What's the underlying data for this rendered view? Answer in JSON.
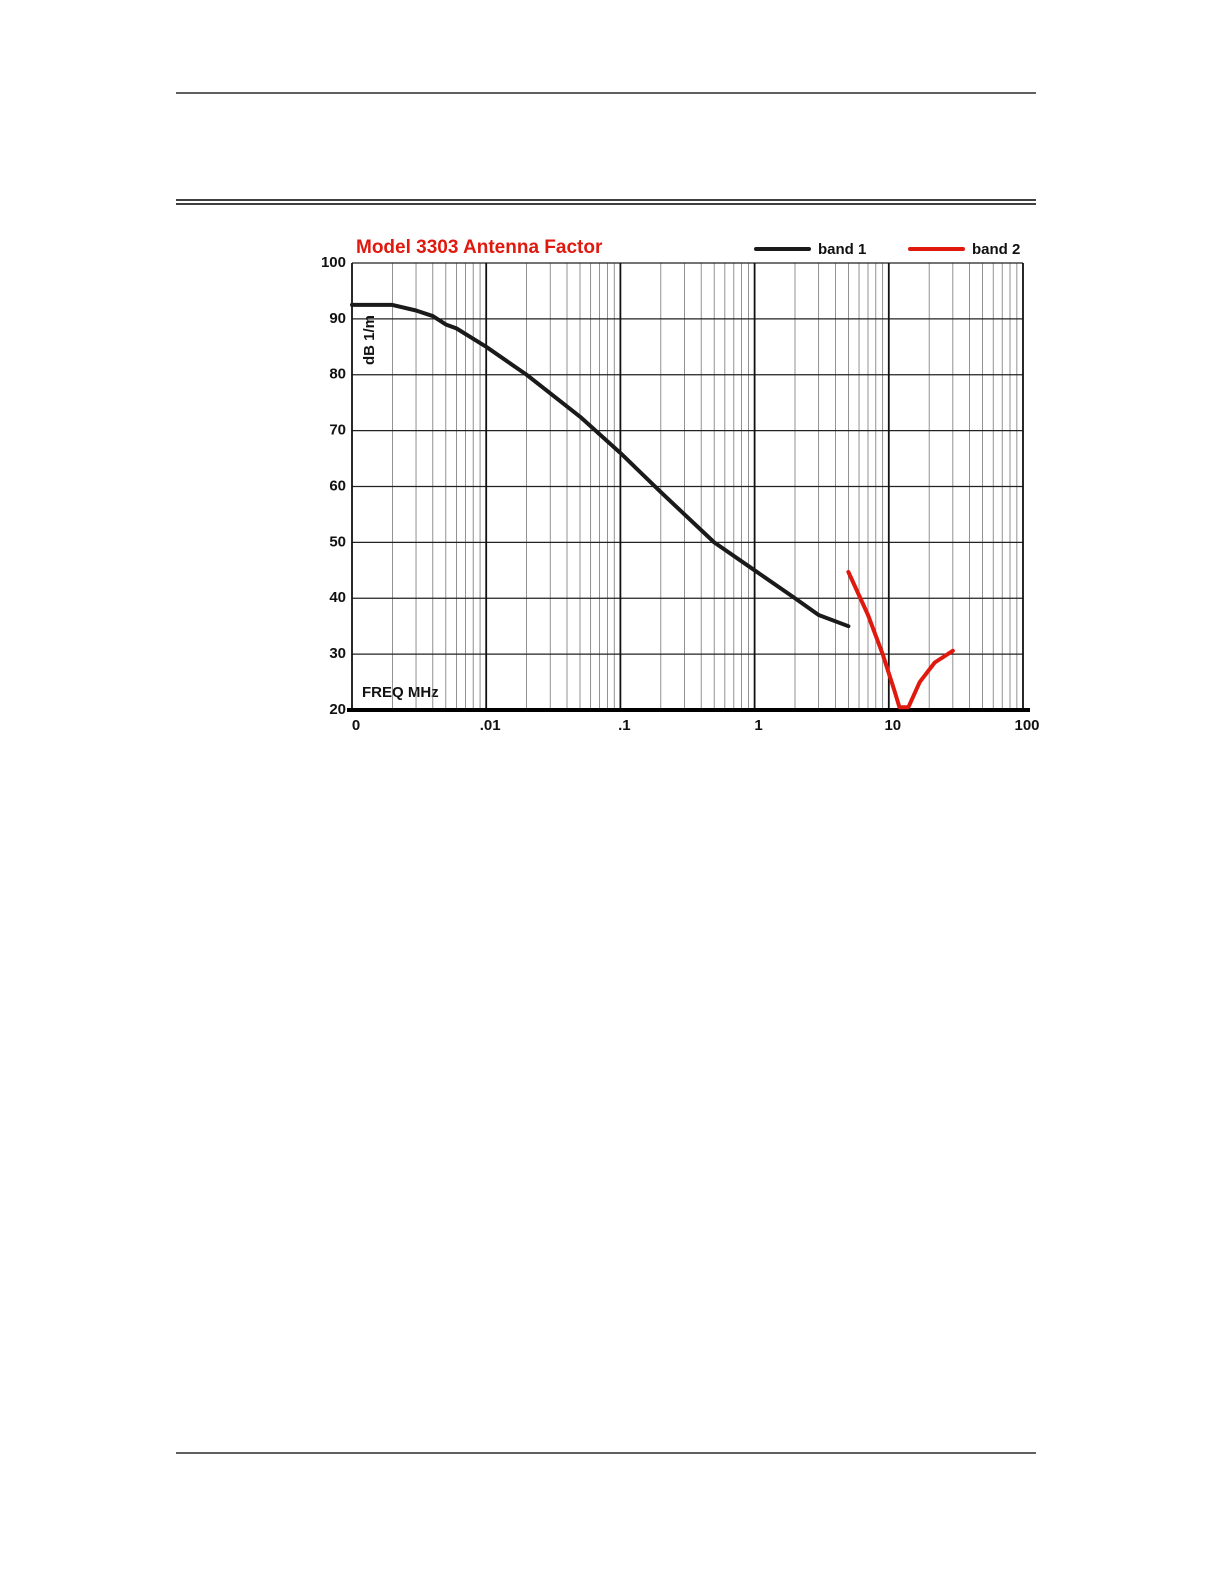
{
  "chart_data": {
    "type": "line",
    "title": "Model 3303 Antenna Factor",
    "xlabel": "FREQ  MHz",
    "ylabel": "dB 1/m",
    "xscale": "log",
    "grid": true,
    "legend": "top-right",
    "xlim": [
      0.001,
      100
    ],
    "ylim": [
      20,
      100
    ],
    "xticks": [
      {
        "value": 0.001,
        "label": "0"
      },
      {
        "value": 0.01,
        "label": ".01"
      },
      {
        "value": 0.1,
        "label": ".1"
      },
      1,
      10,
      100
    ],
    "xminorticks": [
      0.002,
      0.003,
      0.004,
      0.005,
      0.006,
      0.007,
      0.008,
      0.009,
      0.02,
      0.03,
      0.04,
      0.05,
      0.06,
      0.07,
      0.08,
      0.09,
      0.2,
      0.3,
      0.4,
      0.5,
      0.6,
      0.7,
      0.8,
      0.9,
      2,
      3,
      4,
      5,
      6,
      7,
      8,
      9,
      20,
      30,
      40,
      50,
      60,
      70,
      80,
      90
    ],
    "yticks": [
      20,
      30,
      40,
      50,
      60,
      70,
      80,
      90,
      100
    ],
    "series": [
      {
        "name": "band 1",
        "color": "#1a1a1a",
        "x": [
          0.001,
          0.002,
          0.003,
          0.004,
          0.005,
          0.006,
          0.01,
          0.02,
          0.05,
          0.1,
          0.2,
          0.5,
          1,
          2,
          3,
          5
        ],
        "values": [
          92.5,
          92.5,
          91.5,
          90.5,
          89,
          88.3,
          85,
          80,
          72.5,
          66,
          59,
          50,
          45,
          40,
          37,
          35
        ]
      },
      {
        "name": "band 2",
        "color": "#e0190f",
        "x": [
          5,
          7,
          9,
          11,
          12,
          14,
          17,
          22,
          30
        ],
        "values": [
          44.7,
          37,
          30,
          23.5,
          20.5,
          20.5,
          25,
          28.5,
          30.6
        ]
      }
    ]
  }
}
